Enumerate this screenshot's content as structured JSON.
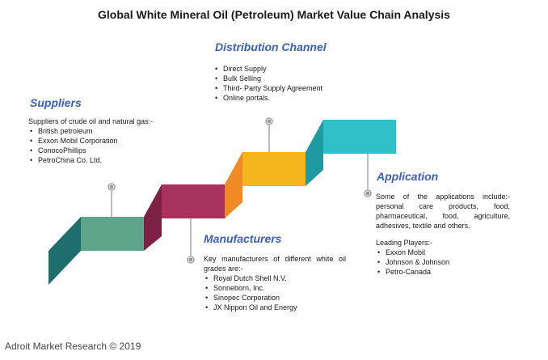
{
  "title": "Global White Mineral Oil (Petroleum) Market Value Chain Analysis",
  "colors": {
    "step1": "#5fa58b",
    "step1_side": "#1f6e6e",
    "step2": "#a8325e",
    "step2_side": "#7e1f44",
    "step3": "#f5b51c",
    "step3_side": "#f08a24",
    "step4": "#2fc0c8",
    "step4_side": "#1f9aa0",
    "heading": "#3b5fc0"
  },
  "suppliers": {
    "heading": "Suppliers",
    "intro": "Suppliers of crude oil and natural gas:-",
    "items": [
      "British petroleum",
      "Exxon Mobil Corporation",
      "ConocoPhillips",
      "PetroChina Co. Ltd."
    ]
  },
  "distribution": {
    "heading": "Distribution Channel",
    "items": [
      "Direct Supply",
      "Bulk Selling",
      "Third- Party Supply Agreement",
      "Online portals."
    ]
  },
  "application": {
    "heading": "Application",
    "intro_lines": [
      "Some of the applications include:-",
      "personal care products, food,",
      "pharmaceutical, food, agriculture,"
    ],
    "intro_last": "adhesives, textile and others.",
    "players_label": "Leading Players:-",
    "items": [
      "Exxon Mobil",
      "Johnson & Johnson",
      "Petro-Canada"
    ]
  },
  "manufacturers": {
    "heading": "Manufacturers",
    "intro_line1": "Key manufacturers of different white oil",
    "intro_line2": "grades are:-",
    "items": [
      "Royal Dutch Shell N.V.",
      "Sonneborn, Inc.",
      "Sinopec Corporation",
      "JX Nippon Oil and Energy"
    ]
  },
  "footer": "Adroit Market Research © 2019"
}
